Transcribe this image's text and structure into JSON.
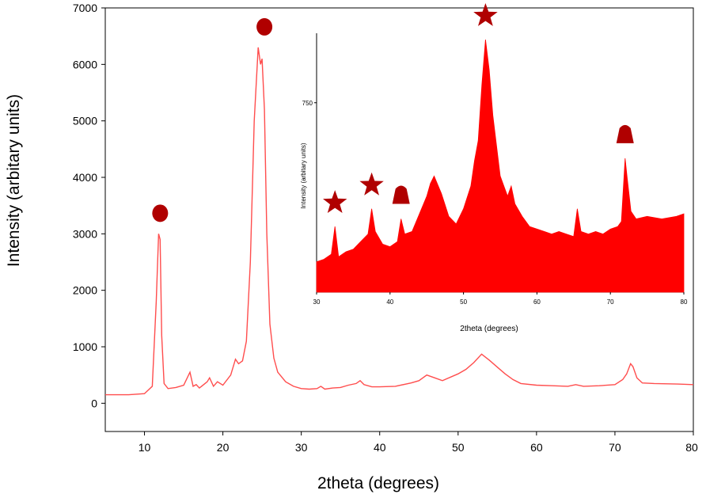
{
  "colors": {
    "main_line": "#ff4d4d",
    "inset_fill": "#ff0000",
    "marker": "#b00000"
  },
  "chart_data": [
    {
      "type": "line",
      "xlabel": "2theta (degrees)",
      "ylabel": "Intensity (arbitary units)",
      "xlim": [
        5,
        80
      ],
      "ylim": [
        -500,
        7000
      ],
      "x_ticks": [
        10,
        20,
        30,
        40,
        50,
        60,
        70,
        80
      ],
      "y_ticks": [
        0,
        1000,
        2000,
        3000,
        4000,
        5000,
        6000,
        7000
      ],
      "series": [
        {
          "x": [
            5,
            8,
            10,
            11,
            11.5,
            11.8,
            12,
            12.2,
            12.5,
            13,
            14,
            15,
            15.8,
            16.2,
            16.6,
            17,
            18,
            18.3,
            18.8,
            19.3,
            20,
            21,
            21.6,
            22,
            22.5,
            23,
            23.5,
            24,
            24.5,
            24.8,
            25,
            25.3,
            25.6,
            26,
            26.5,
            27,
            28,
            29,
            30,
            31,
            32,
            32.5,
            33,
            34,
            35,
            36,
            37,
            37.5,
            38,
            39,
            40,
            42,
            44,
            45,
            46,
            47,
            48,
            50,
            51,
            52,
            53,
            54,
            55,
            56,
            57,
            58,
            60,
            62,
            64,
            65,
            66,
            68,
            70,
            71,
            71.5,
            72,
            72.3,
            72.8,
            73.5,
            75,
            78,
            80
          ],
          "y": [
            150,
            150,
            170,
            300,
            1800,
            3000,
            2900,
            1200,
            350,
            260,
            280,
            320,
            550,
            300,
            330,
            270,
            380,
            450,
            300,
            380,
            320,
            500,
            780,
            700,
            750,
            1100,
            2500,
            5000,
            6300,
            6000,
            6100,
            5200,
            3000,
            1400,
            800,
            550,
            380,
            300,
            260,
            250,
            260,
            300,
            250,
            270,
            280,
            320,
            350,
            400,
            330,
            290,
            290,
            300,
            360,
            400,
            500,
            450,
            400,
            520,
            600,
            720,
            870,
            760,
            640,
            520,
            420,
            350,
            320,
            310,
            300,
            330,
            300,
            310,
            330,
            420,
            520,
            700,
            650,
            450,
            360,
            350,
            340,
            330
          ]
        }
      ],
      "annotations": [
        {
          "marker": "circle",
          "x": 12
        },
        {
          "marker": "circle",
          "x": 25.3
        }
      ]
    },
    {
      "type": "area",
      "xlabel": "2theta (degrees)",
      "ylabel": "Intensity (arbitary units)",
      "xlim": [
        30,
        80
      ],
      "ylim": [
        0,
        1000
      ],
      "x_ticks": [
        30,
        40,
        50,
        60,
        70,
        80
      ],
      "y_ticks": [
        750
      ],
      "series": [
        {
          "x": [
            30,
            31,
            32,
            32.5,
            33,
            34,
            35,
            36,
            37,
            37.5,
            38,
            39,
            40,
            41,
            41.5,
            42,
            43,
            44,
            45,
            45.5,
            46,
            47,
            48,
            49,
            50,
            51,
            51.5,
            52,
            52.5,
            53,
            53.5,
            54,
            55,
            56,
            56.5,
            57,
            58,
            59,
            60,
            61,
            62,
            63,
            64,
            65,
            65.5,
            66,
            67,
            68,
            69,
            70,
            71,
            71.5,
            72,
            72.3,
            72.8,
            73.5,
            75,
            77,
            79,
            80
          ],
          "y": [
            120,
            130,
            150,
            260,
            140,
            160,
            170,
            200,
            230,
            330,
            240,
            190,
            180,
            200,
            290,
            230,
            240,
            310,
            380,
            430,
            460,
            390,
            300,
            270,
            330,
            420,
            520,
            600,
            820,
            1000,
            880,
            700,
            460,
            380,
            420,
            350,
            300,
            260,
            250,
            240,
            230,
            240,
            230,
            220,
            330,
            240,
            230,
            240,
            230,
            250,
            260,
            280,
            530,
            450,
            320,
            290,
            300,
            290,
            300,
            310
          ]
        }
      ],
      "annotations": [
        {
          "marker": "star",
          "x": 32.5
        },
        {
          "marker": "star",
          "x": 37.5
        },
        {
          "marker": "triangle",
          "x": 41.5
        },
        {
          "marker": "star",
          "x": 53
        },
        {
          "marker": "triangle",
          "x": 72
        }
      ]
    }
  ]
}
